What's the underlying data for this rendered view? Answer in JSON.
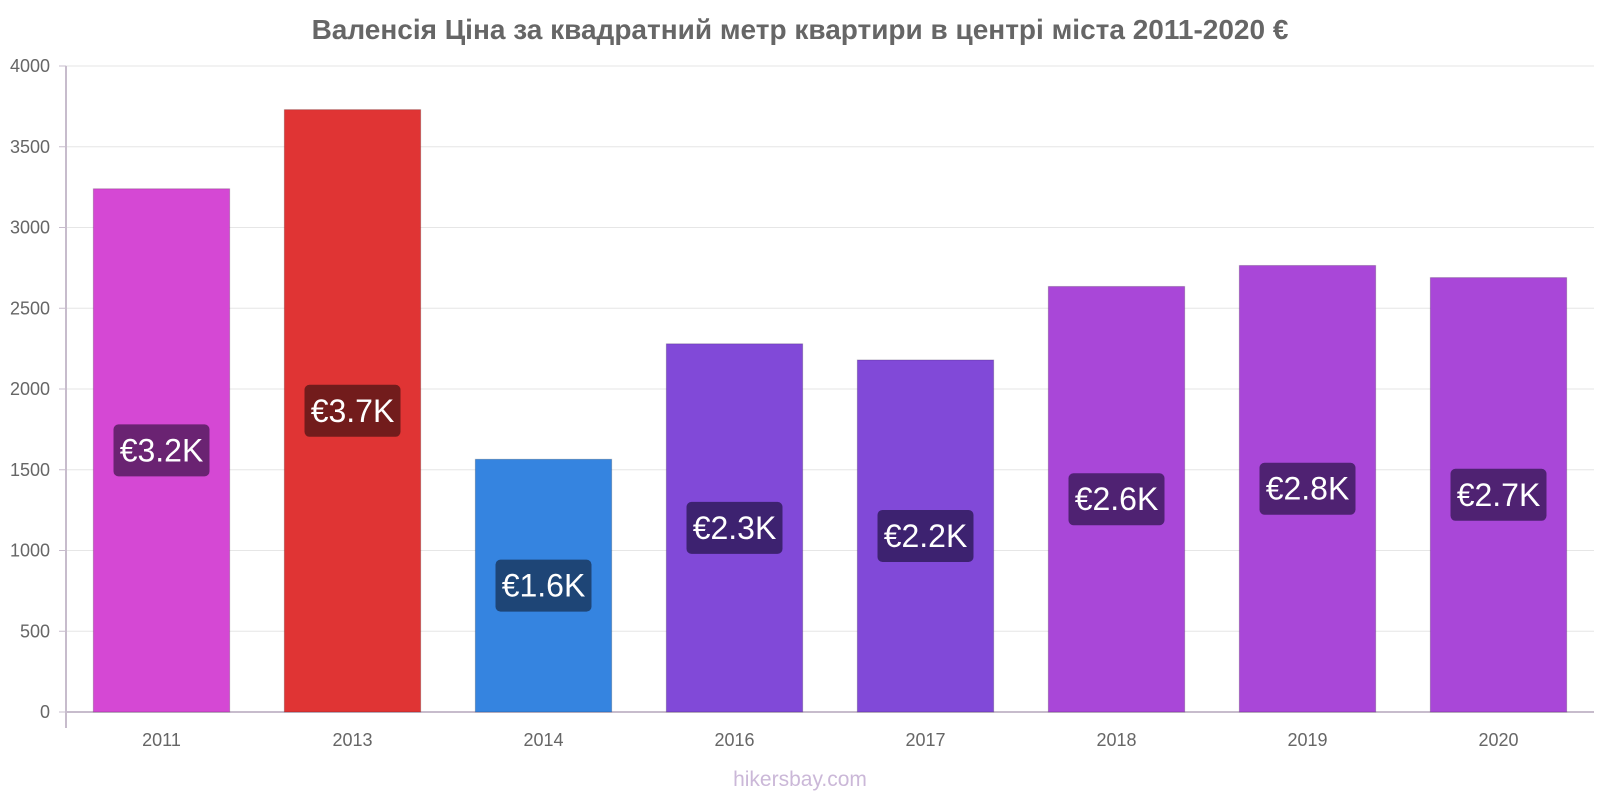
{
  "chart_data": {
    "type": "bar",
    "title": "Валенсія Ціна за квадратний метр квартири в центрі міста 2011-2020 €",
    "categories": [
      "2011",
      "2013",
      "2014",
      "2016",
      "2017",
      "2018",
      "2019",
      "2020"
    ],
    "values": [
      3240,
      3730,
      1565,
      2280,
      2180,
      2635,
      2765,
      2690
    ],
    "value_labels": [
      "€3.2K",
      "€3.7K",
      "€1.6K",
      "€2.3K",
      "€2.2K",
      "€2.6K",
      "€2.8K",
      "€2.7K"
    ],
    "colors": [
      "#d548d4",
      "#e03434",
      "#3584e0",
      "#8149d8",
      "#8149d8",
      "#a947d8",
      "#a947d8",
      "#a947d8"
    ],
    "label_bg_colors": [
      "#6a2372",
      "#721c1c",
      "#1e4576",
      "#3d2270",
      "#3d2270",
      "#4f2272",
      "#4f2272",
      "#4f2272"
    ],
    "y_ticks": [
      0,
      500,
      1000,
      1500,
      2000,
      2500,
      3000,
      3500,
      4000
    ],
    "ylim": [
      0,
      4000
    ],
    "xlabel": "",
    "ylabel": "",
    "grid": true
  },
  "footer": {
    "watermark": "hikersbay.com"
  }
}
